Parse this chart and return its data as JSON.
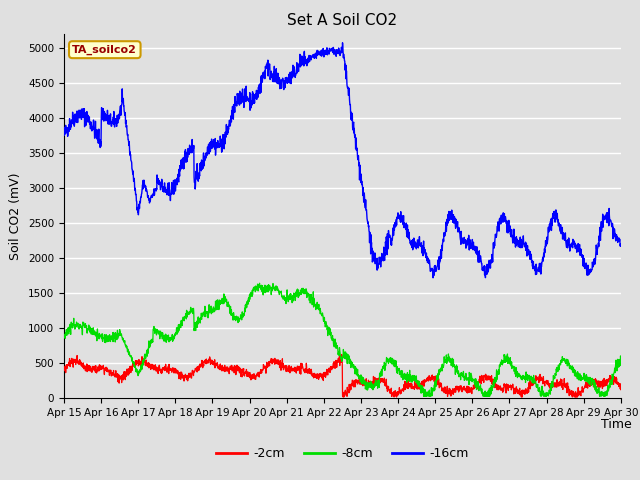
{
  "title": "Set A Soil CO2",
  "ylabel": "Soil CO2 (mV)",
  "xlabel": "Time",
  "legend_label": "TA_soilco2",
  "series_labels": [
    "-2cm",
    "-8cm",
    "-16cm"
  ],
  "series_colors": [
    "#ff0000",
    "#00dd00",
    "#0000ff"
  ],
  "ylim": [
    0,
    5200
  ],
  "yticks": [
    0,
    500,
    1000,
    1500,
    2000,
    2500,
    3000,
    3500,
    4000,
    4500,
    5000
  ],
  "xtick_labels": [
    "Apr 15",
    "Apr 16",
    "Apr 17",
    "Apr 18",
    "Apr 19",
    "Apr 20",
    "Apr 21",
    "Apr 22",
    "Apr 23",
    "Apr 24",
    "Apr 25",
    "Apr 26",
    "Apr 27",
    "Apr 28",
    "Apr 29",
    "Apr 30"
  ],
  "bg_color": "#e0e0e0",
  "plot_bg_color": "#e0e0e0",
  "grid_color": "#ffffff",
  "legend_box_color": "#ffffcc",
  "legend_box_edge": "#cc9900",
  "legend_text_color": "#990000",
  "title_fontsize": 11,
  "axis_label_fontsize": 9,
  "tick_fontsize": 7.5,
  "legend_fontsize": 9
}
